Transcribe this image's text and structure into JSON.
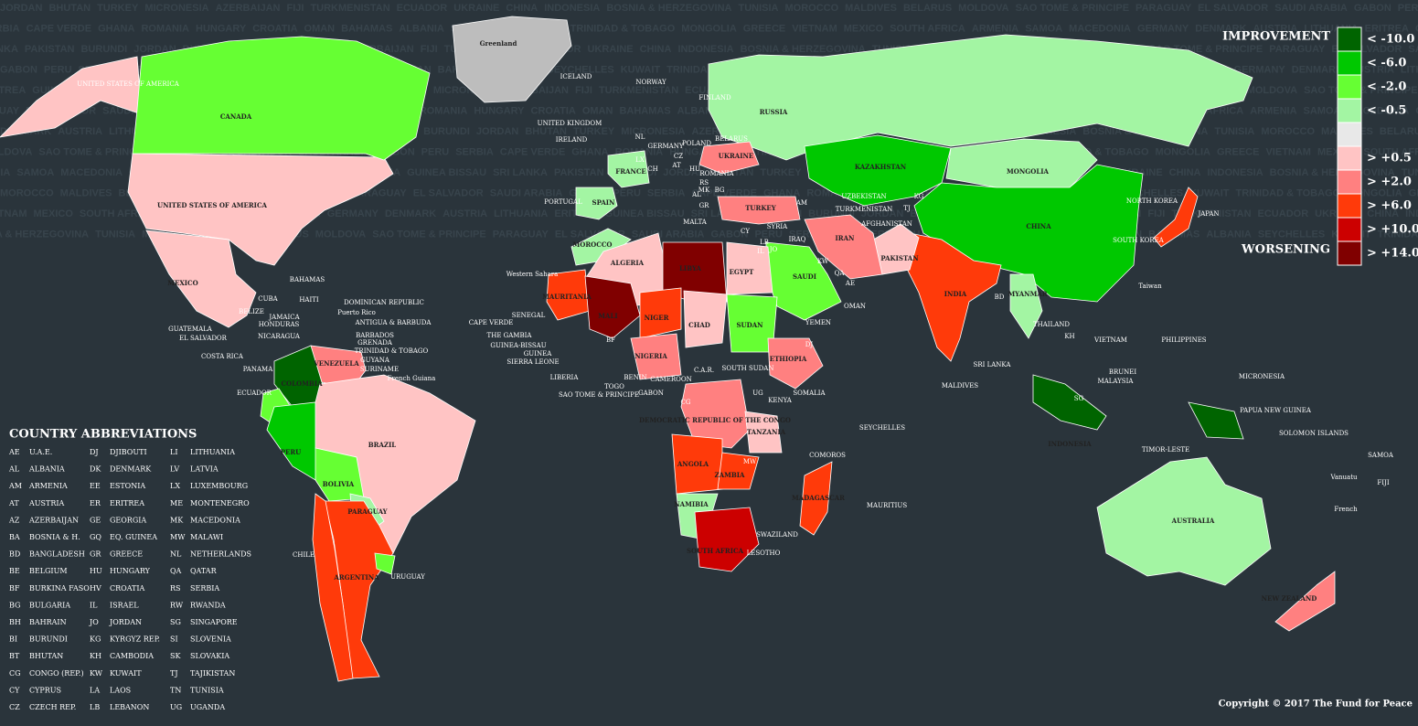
{
  "background_names": [
    "JORDAN",
    "BHUTAN",
    "TURKEY",
    "MICRONESIA",
    "AZERBAIJAN",
    "FIJI",
    "TURKMENISTAN",
    "ECUADOR",
    "UKRAINE",
    "CHINA",
    "INDONESIA",
    "BOSNIA & HERZEGOVINA",
    "TUNISIA",
    "MOROCCO",
    "MALDIVES",
    "BELARUS",
    "MOLDOVA",
    "SAO TOME & PRINCIPE",
    "PARAGUAY",
    "EL SALVADOR",
    "SAUDI ARABIA",
    "GABON",
    "PERU",
    "SERBIA",
    "CAPE VERDE",
    "GHANA",
    "ROMANIA",
    "HUNGARY",
    "CROATIA",
    "OMAN",
    "BAHAMAS",
    "ALBANIA",
    "SEYCHELLES",
    "KUWAIT",
    "TRINIDAD & TOBAGO",
    "MONGOLIA",
    "GREECE",
    "VIETNAM",
    "MEXICO",
    "SOUTH AFRICA",
    "ARMENIA",
    "SAMOA",
    "MACEDONIA",
    "GERMANY",
    "DENMARK",
    "AUSTRIA",
    "LITHUANIA",
    "ERITREA",
    "GUINEA BISSAU",
    "SRI LANKA",
    "PAKISTAN",
    "BURUNDI"
  ],
  "legend": {
    "improvement_label": "IMPROVEMENT",
    "worsening_label": "WORSENING",
    "items": [
      {
        "label": "< -10.0",
        "color": "#006400"
      },
      {
        "label": "< -6.0",
        "color": "#00c800"
      },
      {
        "label": "< -2.0",
        "color": "#66ff33"
      },
      {
        "label": "< -0.5",
        "color": "#a3f5a3"
      },
      {
        "label": "",
        "color": "#e8e8e8"
      },
      {
        "label": "> +0.5",
        "color": "#ffc4c4"
      },
      {
        "label": "> +2.0",
        "color": "#ff8080"
      },
      {
        "label": "> +6.0",
        "color": "#ff3a0a"
      },
      {
        "label": "> +10.0",
        "color": "#cc0000"
      },
      {
        "label": "> +14.0",
        "color": "#800000"
      }
    ]
  },
  "countries": [
    {
      "name": "UNITED STATES OF AMERICA",
      "color": "#ffc4c4"
    },
    {
      "name": "UNITED STATES OF AMERICA",
      "color": "#ffc4c4"
    },
    {
      "name": "CANADA",
      "color": "#66ff33"
    },
    {
      "name": "Greenland",
      "color": "#bdbdbd"
    },
    {
      "name": "MEXICO",
      "color": "#ffc4c4"
    },
    {
      "name": "COLOMBIA",
      "color": "#006400"
    },
    {
      "name": "VENEZUELA",
      "color": "#ff8080"
    },
    {
      "name": "ECUADOR",
      "color": "#66ff33"
    },
    {
      "name": "PERU",
      "color": "#00c800"
    },
    {
      "name": "BRAZIL",
      "color": "#ffc4c4"
    },
    {
      "name": "BOLIVIA",
      "color": "#66ff33"
    },
    {
      "name": "PARAGUAY",
      "color": "#a3f5a3"
    },
    {
      "name": "ARGENTINA",
      "color": "#ff3a0a"
    },
    {
      "name": "CHILE",
      "color": "#ff3a0a"
    },
    {
      "name": "URUGUAY",
      "color": "#66ff33"
    },
    {
      "name": "RUSSIA",
      "color": "#a3f5a3"
    },
    {
      "name": "KAZAKHSTAN",
      "color": "#00c800"
    },
    {
      "name": "MONGOLIA",
      "color": "#a3f5a3"
    },
    {
      "name": "CHINA",
      "color": "#00c800"
    },
    {
      "name": "INDIA",
      "color": "#ff3a0a"
    },
    {
      "name": "PAKISTAN",
      "color": "#ffc4c4"
    },
    {
      "name": "IRAN",
      "color": "#ff8080"
    },
    {
      "name": "SAUDI",
      "color": "#66ff33"
    },
    {
      "name": "TURKEY",
      "color": "#ff8080"
    },
    {
      "name": "JAPAN",
      "color": "#ff3a0a"
    },
    {
      "name": "MOROCCO",
      "color": "#a3f5a3"
    },
    {
      "name": "ALGERIA",
      "color": "#ffc4c4"
    },
    {
      "name": "LIBYA",
      "color": "#800000"
    },
    {
      "name": "EGYPT",
      "color": "#ffc4c4"
    },
    {
      "name": "MAURITANIA",
      "color": "#ff3a0a"
    },
    {
      "name": "MALI",
      "color": "#800000"
    },
    {
      "name": "NIGER",
      "color": "#ff3a0a"
    },
    {
      "name": "CHAD",
      "color": "#ffc4c4"
    },
    {
      "name": "SUDAN",
      "color": "#66ff33"
    },
    {
      "name": "NIGERIA",
      "color": "#ff8080"
    },
    {
      "name": "ETHIOPIA",
      "color": "#ff8080"
    },
    {
      "name": "DEMOCRATIC REPUBLIC OF THE CONGO",
      "color": "#ff8080"
    },
    {
      "name": "ANGOLA",
      "color": "#ff3a0a"
    },
    {
      "name": "ZAMBIA",
      "color": "#ff3a0a"
    },
    {
      "name": "TANZANIA",
      "color": "#ffc4c4"
    },
    {
      "name": "NAMIBIA",
      "color": "#a3f5a3"
    },
    {
      "name": "SOUTH AFRICA",
      "color": "#cc0000"
    },
    {
      "name": "MADAGASCAR",
      "color": "#ff3a0a"
    },
    {
      "name": "SPAIN",
      "color": "#a3f5a3"
    },
    {
      "name": "FRANCE",
      "color": "#a3f5a3"
    },
    {
      "name": "UKRAINE",
      "color": "#ff8080"
    },
    {
      "name": "MYANMAR",
      "color": "#a3f5a3"
    },
    {
      "name": "INDONESIA",
      "color": "#006400"
    },
    {
      "name": "PAPUA NEW GUINEA",
      "color": "#006400"
    },
    {
      "name": "AUSTRALIA",
      "color": "#a3f5a3"
    },
    {
      "name": "NEW ZEALAND",
      "color": "#ff8080"
    }
  ],
  "labels": [
    "BAHAMAS",
    "CUBA",
    "HAITI",
    "DOMINICAN REPUBLIC",
    "Puerto Rico",
    "JAMAICA",
    "BELIZE",
    "HONDURAS",
    "ANTIGUA & BARBUDA",
    "GUATEMALA",
    "EL SALVADOR",
    "NICARAGUA",
    "BARBADOS",
    "GRENADA",
    "TRINIDAD & TOBAGO",
    "COSTA RICA",
    "GUYANA",
    "SURINAME",
    "PANAMA",
    "French Guiana",
    "ICELAND",
    "NORWAY",
    "FINLAND",
    "UNITED KINGDOM",
    "IRELAND",
    "POLAND",
    "GERMANY",
    "BELARUS",
    "PORTUGAL",
    "MALTA",
    "SYRIA",
    "IRAQ",
    "CY",
    "LB",
    "IL",
    "JO",
    "AM",
    "AFGHANISTAN",
    "UZBEKISTAN",
    "TURKMENISTAN",
    "KG",
    "TJ",
    "NORTH KOREA",
    "SOUTH KOREA",
    "Taiwan",
    "BD",
    "THAILAND",
    "VIETNAM",
    "KH",
    "PHILIPPINES",
    "BRUNEI",
    "MALAYSIA",
    "SG",
    "SRI LANKA",
    "MALDIVES",
    "SEYCHELLES",
    "MAURITIUS",
    "COMOROS",
    "SWAZILAND",
    "LESOTHO",
    "MW",
    "KENYA",
    "SOMALIA",
    "UG",
    "SOUTH SUDAN",
    "C.A.R.",
    "CAMEROON",
    "GABON",
    "CG",
    "BENIN",
    "TOGO",
    "SAO TOME & PRINCIPE",
    "LIBERIA",
    "SIERRA LEONE",
    "GUINEA",
    "GUINEA-BISSAU",
    "THE GAMBIA",
    "SENEGAL",
    "CAPE VERDE",
    "Western Sahara",
    "BF",
    "YEMEN",
    "OMAN",
    "DJ",
    "QA",
    "KW",
    "AE",
    "MICRONESIA",
    "SOLOMON ISLANDS",
    "SAMOA",
    "FIJI",
    "Vanuatu",
    "French",
    "TIMOR-LESTE",
    "NL",
    "LX",
    "CH",
    "AT",
    "CZ",
    "HU",
    "BG",
    "GR",
    "AL",
    "RS",
    "ROMANIA",
    "MK"
  ],
  "abbreviations": {
    "title": "COUNTRY ABBREVIATIONS",
    "rows": [
      [
        "AE",
        "U.A.E."
      ],
      [
        "AL",
        "ALBANIA"
      ],
      [
        "AM",
        "ARMENIA"
      ],
      [
        "AT",
        "AUSTRIA"
      ],
      [
        "AZ",
        "AZERBAIJAN"
      ],
      [
        "BA",
        "BOSNIA & H."
      ],
      [
        "BD",
        "BANGLADESH"
      ],
      [
        "BE",
        "BELGIUM"
      ],
      [
        "BF",
        "BURKINA FASO"
      ],
      [
        "BG",
        "BULGARIA"
      ],
      [
        "BH",
        "BAHRAIN"
      ],
      [
        "BI",
        "BURUNDI"
      ],
      [
        "BT",
        "BHUTAN"
      ],
      [
        "CG",
        "CONGO (REP.)"
      ],
      [
        "CY",
        "CYPRUS"
      ],
      [
        "CZ",
        "CZECH REP."
      ],
      [
        "DJ",
        "DJIBOUTI"
      ],
      [
        "DK",
        "DENMARK"
      ],
      [
        "EE",
        "ESTONIA"
      ],
      [
        "ER",
        "ERITREA"
      ],
      [
        "GE",
        "GEORGIA"
      ],
      [
        "GQ",
        "EQ. GUINEA"
      ],
      [
        "GR",
        "GREECE"
      ],
      [
        "HU",
        "HUNGARY"
      ],
      [
        "HV",
        "CROATIA"
      ],
      [
        "IL",
        "ISRAEL"
      ],
      [
        "JO",
        "JORDAN"
      ],
      [
        "KG",
        "KYRGYZ REP."
      ],
      [
        "KH",
        "CAMBODIA"
      ],
      [
        "KW",
        "KUWAIT"
      ],
      [
        "LA",
        "LAOS"
      ],
      [
        "LB",
        "LEBANON"
      ],
      [
        "LI",
        "LITHUANIA"
      ],
      [
        "LV",
        "LATVIA"
      ],
      [
        "LX",
        "LUXEMBOURG"
      ],
      [
        "ME",
        "MONTENEGRO"
      ],
      [
        "MK",
        "MACEDONIA"
      ],
      [
        "MW",
        "MALAWI"
      ],
      [
        "NL",
        "NETHERLANDS"
      ],
      [
        "QA",
        "QATAR"
      ],
      [
        "RS",
        "SERBIA"
      ],
      [
        "RW",
        "RWANDA"
      ],
      [
        "SG",
        "SINGAPORE"
      ],
      [
        "SI",
        "SLOVENIA"
      ],
      [
        "SK",
        "SLOVAKIA"
      ],
      [
        "TJ",
        "TAJIKISTAN"
      ],
      [
        "TN",
        "TUNISIA"
      ],
      [
        "UG",
        "UGANDA"
      ]
    ]
  },
  "copyright": "Copyright © 2017 The Fund for Peace"
}
